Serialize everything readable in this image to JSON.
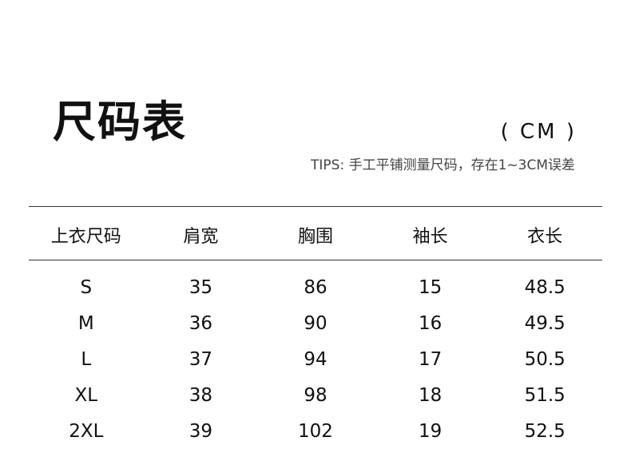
{
  "title": "尺码表",
  "unit": "( CM )",
  "tips": "TIPS: 手工平铺测量尺码，存在1~3CM误差",
  "headers": [
    "上衣尺码",
    "肩宽",
    "胸围",
    "袖长",
    "衣长"
  ],
  "rows": [
    [
      "S",
      "35",
      "86",
      "15",
      "48.5"
    ],
    [
      "M",
      "36",
      "90",
      "16",
      "49.5"
    ],
    [
      "L",
      "37",
      "94",
      "17",
      "50.5"
    ],
    [
      "XL",
      "38",
      "98",
      "18",
      "51.5"
    ],
    [
      "2XL",
      "39",
      "102",
      "19",
      "52.5"
    ]
  ]
}
